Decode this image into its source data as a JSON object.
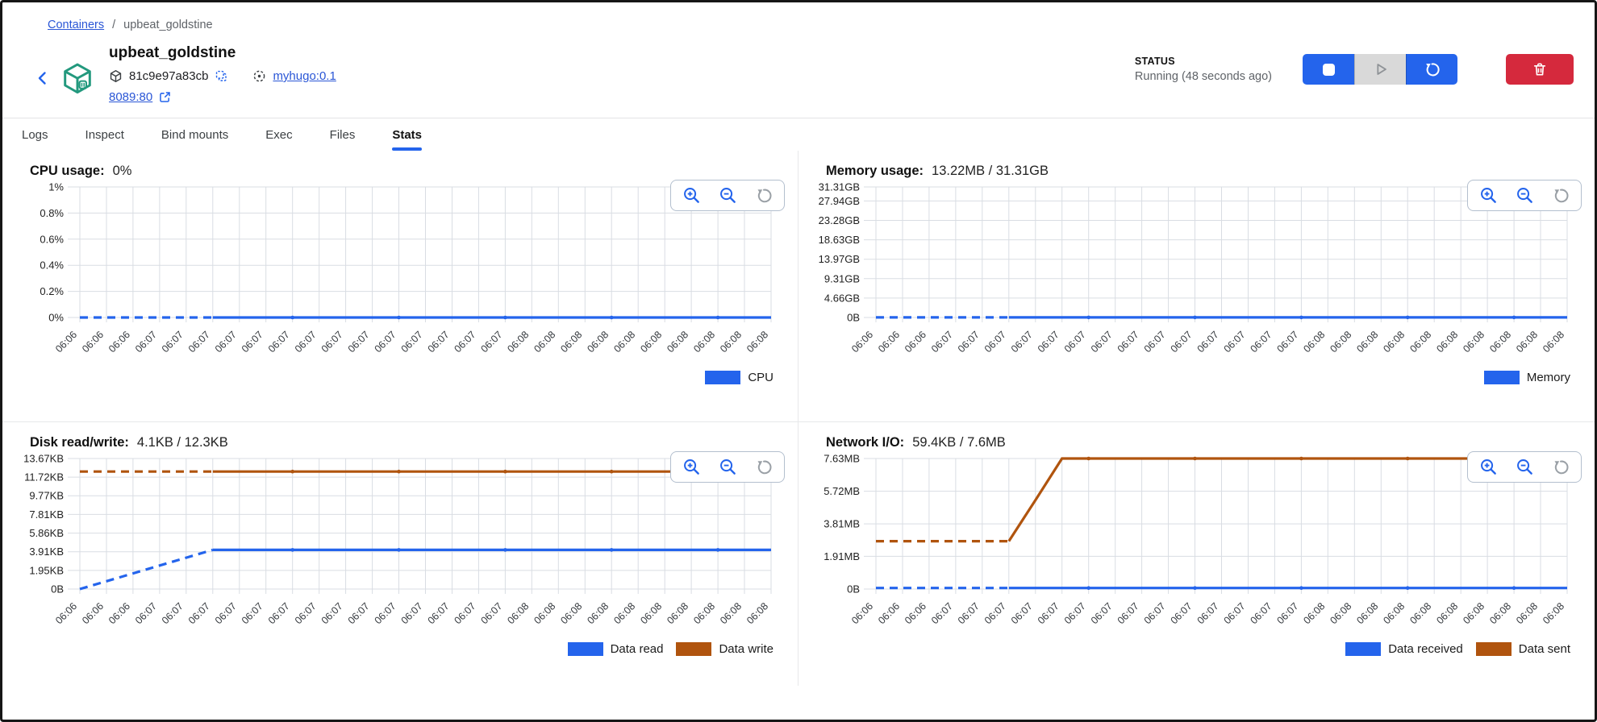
{
  "breadcrumb": {
    "root": "Containers",
    "separator": "/",
    "current": "upbeat_goldstine"
  },
  "header": {
    "title": "upbeat_goldstine",
    "container_id": "81c9e97a83cb",
    "image_ref": "myhugo:0.1",
    "port_mapping": "8089:80",
    "status_label": "STATUS",
    "status_value": "Running (48 seconds ago)"
  },
  "tabs": [
    {
      "label": "Logs",
      "active": false
    },
    {
      "label": "Inspect",
      "active": false
    },
    {
      "label": "Bind mounts",
      "active": false
    },
    {
      "label": "Exec",
      "active": false
    },
    {
      "label": "Files",
      "active": false
    },
    {
      "label": "Stats",
      "active": true
    }
  ],
  "colors": {
    "accent_blue": "#2464ec",
    "series_blue": "#2464ec",
    "series_orange": "#b0540e",
    "danger_red": "#d5293d",
    "container_teal": "#23997e",
    "disabled_gray": "#d9d9d9",
    "grid_gray": "#d9dde3"
  },
  "chart_data": [
    {
      "id": "cpu",
      "type": "line",
      "title": "CPU usage:",
      "current_value": "0%",
      "ymax": 1,
      "yticks": [
        {
          "v": 1,
          "label": "1%"
        },
        {
          "v": 0.8,
          "label": "0.8%"
        },
        {
          "v": 0.6,
          "label": "0.6%"
        },
        {
          "v": 0.4,
          "label": "0.4%"
        },
        {
          "v": 0.2,
          "label": "0.2%"
        },
        {
          "v": 0,
          "label": "0%"
        }
      ],
      "x_labels": [
        "06:06",
        "06:06",
        "06:06",
        "06:07",
        "06:07",
        "06:07",
        "06:07",
        "06:07",
        "06:07",
        "06:07",
        "06:07",
        "06:07",
        "06:07",
        "06:07",
        "06:07",
        "06:07",
        "06:07",
        "06:08",
        "06:08",
        "06:08",
        "06:08",
        "06:08",
        "06:08",
        "06:08",
        "06:08",
        "06:08",
        "06:08"
      ],
      "dash_until": 5,
      "series": [
        {
          "name": "CPU",
          "color": "#2464ec",
          "values": [
            0,
            0,
            0,
            0,
            0,
            0,
            0,
            0,
            0,
            0,
            0,
            0,
            0,
            0,
            0,
            0,
            0,
            0,
            0,
            0,
            0,
            0,
            0,
            0,
            0,
            0,
            0
          ]
        }
      ],
      "legend": [
        {
          "label": "CPU",
          "color": "#2464ec"
        }
      ]
    },
    {
      "id": "memory",
      "type": "line",
      "title": "Memory usage:",
      "current_value": "13.22MB / 31.31GB",
      "ymax": 31.31,
      "yticks": [
        {
          "v": 31.31,
          "label": "31.31GB"
        },
        {
          "v": 27.94,
          "label": "27.94GB"
        },
        {
          "v": 23.28,
          "label": "23.28GB"
        },
        {
          "v": 18.63,
          "label": "18.63GB"
        },
        {
          "v": 13.97,
          "label": "13.97GB"
        },
        {
          "v": 9.31,
          "label": "9.31GB"
        },
        {
          "v": 4.66,
          "label": "4.66GB"
        },
        {
          "v": 0,
          "label": "0B"
        }
      ],
      "x_labels": [
        "06:06",
        "06:06",
        "06:06",
        "06:07",
        "06:07",
        "06:07",
        "06:07",
        "06:07",
        "06:07",
        "06:07",
        "06:07",
        "06:07",
        "06:07",
        "06:07",
        "06:07",
        "06:07",
        "06:07",
        "06:08",
        "06:08",
        "06:08",
        "06:08",
        "06:08",
        "06:08",
        "06:08",
        "06:08",
        "06:08",
        "06:08"
      ],
      "dash_until": 5,
      "series": [
        {
          "name": "Memory",
          "color": "#2464ec",
          "values": [
            0.013,
            0.013,
            0.013,
            0.013,
            0.013,
            0.013,
            0.013,
            0.013,
            0.013,
            0.013,
            0.013,
            0.013,
            0.013,
            0.013,
            0.013,
            0.013,
            0.013,
            0.013,
            0.013,
            0.013,
            0.013,
            0.013,
            0.013,
            0.013,
            0.013,
            0.013,
            0.013
          ]
        }
      ],
      "legend": [
        {
          "label": "Memory",
          "color": "#2464ec"
        }
      ]
    },
    {
      "id": "disk",
      "type": "line",
      "title": "Disk read/write:",
      "current_value": "4.1KB / 12.3KB",
      "ymax": 13.67,
      "yticks": [
        {
          "v": 13.67,
          "label": "13.67KB"
        },
        {
          "v": 11.72,
          "label": "11.72KB"
        },
        {
          "v": 9.77,
          "label": "9.77KB"
        },
        {
          "v": 7.81,
          "label": "7.81KB"
        },
        {
          "v": 5.86,
          "label": "5.86KB"
        },
        {
          "v": 3.91,
          "label": "3.91KB"
        },
        {
          "v": 1.95,
          "label": "1.95KB"
        },
        {
          "v": 0,
          "label": "0B"
        }
      ],
      "x_labels": [
        "06:06",
        "06:06",
        "06:06",
        "06:07",
        "06:07",
        "06:07",
        "06:07",
        "06:07",
        "06:07",
        "06:07",
        "06:07",
        "06:07",
        "06:07",
        "06:07",
        "06:07",
        "06:07",
        "06:07",
        "06:08",
        "06:08",
        "06:08",
        "06:08",
        "06:08",
        "06:08",
        "06:08",
        "06:08",
        "06:08",
        "06:08"
      ],
      "dash_until": 5,
      "series": [
        {
          "name": "Data read",
          "color": "#2464ec",
          "values": [
            0,
            0.82,
            1.64,
            2.46,
            3.28,
            4.1,
            4.1,
            4.1,
            4.1,
            4.1,
            4.1,
            4.1,
            4.1,
            4.1,
            4.1,
            4.1,
            4.1,
            4.1,
            4.1,
            4.1,
            4.1,
            4.1,
            4.1,
            4.1,
            4.1,
            4.1,
            4.1
          ]
        },
        {
          "name": "Data write",
          "color": "#b0540e",
          "values": [
            12.3,
            12.3,
            12.3,
            12.3,
            12.3,
            12.3,
            12.3,
            12.3,
            12.3,
            12.3,
            12.3,
            12.3,
            12.3,
            12.3,
            12.3,
            12.3,
            12.3,
            12.3,
            12.3,
            12.3,
            12.3,
            12.3,
            12.3,
            12.3,
            12.3,
            12.3,
            12.3
          ]
        }
      ],
      "legend": [
        {
          "label": "Data read",
          "color": "#2464ec"
        },
        {
          "label": "Data write",
          "color": "#b0540e"
        }
      ]
    },
    {
      "id": "network",
      "type": "line",
      "title": "Network I/O:",
      "current_value": "59.4KB / 7.6MB",
      "ymax": 7.63,
      "yticks": [
        {
          "v": 7.63,
          "label": "7.63MB"
        },
        {
          "v": 5.72,
          "label": "5.72MB"
        },
        {
          "v": 3.81,
          "label": "3.81MB"
        },
        {
          "v": 1.91,
          "label": "1.91MB"
        },
        {
          "v": 0,
          "label": "0B"
        }
      ],
      "x_labels": [
        "06:06",
        "06:06",
        "06:06",
        "06:07",
        "06:07",
        "06:07",
        "06:07",
        "06:07",
        "06:07",
        "06:07",
        "06:07",
        "06:07",
        "06:07",
        "06:07",
        "06:07",
        "06:07",
        "06:07",
        "06:08",
        "06:08",
        "06:08",
        "06:08",
        "06:08",
        "06:08",
        "06:08",
        "06:08",
        "06:08",
        "06:08"
      ],
      "dash_until": 5,
      "series": [
        {
          "name": "Data received",
          "color": "#2464ec",
          "values": [
            0.06,
            0.06,
            0.06,
            0.06,
            0.06,
            0.06,
            0.06,
            0.06,
            0.06,
            0.06,
            0.06,
            0.06,
            0.06,
            0.06,
            0.06,
            0.06,
            0.06,
            0.06,
            0.06,
            0.06,
            0.06,
            0.06,
            0.06,
            0.06,
            0.06,
            0.06,
            0.06
          ]
        },
        {
          "name": "Data sent",
          "color": "#b0540e",
          "values": [
            2.8,
            2.8,
            2.8,
            2.8,
            2.8,
            2.8,
            5.2,
            7.63,
            7.63,
            7.63,
            7.63,
            7.63,
            7.63,
            7.63,
            7.63,
            7.63,
            7.63,
            7.63,
            7.63,
            7.63,
            7.63,
            7.63,
            7.63,
            7.63,
            7.63,
            7.63,
            7.63
          ]
        }
      ],
      "legend": [
        {
          "label": "Data received",
          "color": "#2464ec"
        },
        {
          "label": "Data sent",
          "color": "#b0540e"
        }
      ]
    }
  ]
}
